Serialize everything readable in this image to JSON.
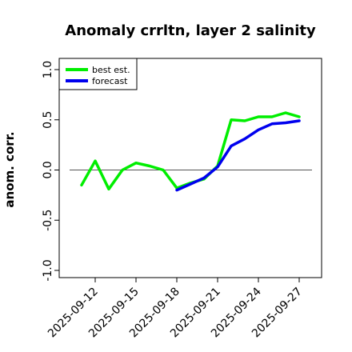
{
  "chart_data": {
    "type": "line",
    "title": "Anomaly crrltn, layer 2 salinity",
    "xlabel": "",
    "ylabel": "anom. corr.",
    "ylim": [
      -1.0,
      1.0
    ],
    "yticks": [
      -1.0,
      -0.5,
      0.0,
      0.5,
      1.0
    ],
    "ytick_labels": [
      "-1.0",
      "-0.5",
      "0.0",
      "0.5",
      "1.0"
    ],
    "xticks": [
      "2025-09-12",
      "2025-09-15",
      "2025-09-18",
      "2025-09-21",
      "2025-09-24",
      "2025-09-27"
    ],
    "xtick_labels": [
      "2025-09-12",
      "2025-09-15",
      "2025-09-18",
      "2025-09-21",
      "2025-09-24",
      "2025-09-27"
    ],
    "highlighted_xtick": "2025-09-18",
    "highlight_color": "#228B22",
    "reference_line_y": 0.0,
    "legend_position": "top-left",
    "grid": false,
    "series": [
      {
        "name": "best est.",
        "color": "#00ee00",
        "x": [
          "2025-09-11",
          "2025-09-12",
          "2025-09-13",
          "2025-09-14",
          "2025-09-15",
          "2025-09-16",
          "2025-09-17",
          "2025-09-18",
          "2025-09-19",
          "2025-09-20",
          "2025-09-21",
          "2025-09-22",
          "2025-09-23",
          "2025-09-24",
          "2025-09-25",
          "2025-09-26",
          "2025-09-27"
        ],
        "values": [
          -0.15,
          0.09,
          -0.19,
          0.0,
          0.07,
          0.04,
          0.0,
          -0.18,
          -0.13,
          -0.09,
          0.04,
          0.5,
          0.49,
          0.53,
          0.53,
          0.57,
          0.53
        ]
      },
      {
        "name": "forecast",
        "color": "#0000ee",
        "x": [
          "2025-09-18",
          "2025-09-19",
          "2025-09-20",
          "2025-09-21",
          "2025-09-22",
          "2025-09-23",
          "2025-09-24",
          "2025-09-25",
          "2025-09-26",
          "2025-09-27"
        ],
        "values": [
          -0.2,
          -0.14,
          -0.08,
          0.03,
          0.24,
          0.31,
          0.4,
          0.46,
          0.47,
          0.49
        ]
      }
    ]
  }
}
